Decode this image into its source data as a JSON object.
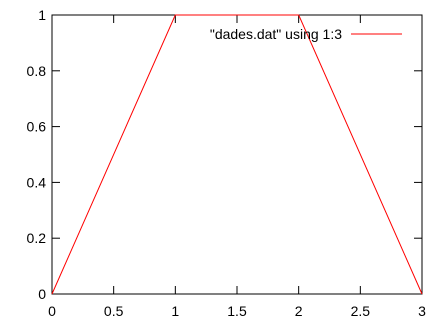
{
  "chart_data": {
    "type": "line",
    "title": "",
    "xlabel": "",
    "ylabel": "",
    "xlim": [
      0,
      3
    ],
    "ylim": [
      0,
      1
    ],
    "xticks": [
      0,
      0.5,
      1,
      1.5,
      2,
      2.5,
      3
    ],
    "yticks": [
      0,
      0.2,
      0.4,
      0.6,
      0.8,
      1
    ],
    "xtick_labels": [
      "0",
      "0.5",
      "1",
      "1.5",
      "2",
      "2.5",
      "3"
    ],
    "ytick_labels": [
      "0",
      "0.2",
      "0.4",
      "0.6",
      "0.8",
      "1"
    ],
    "grid": false,
    "legend_position": "top-right",
    "series": [
      {
        "name": "\"dades.dat\" using 1:3",
        "color": "#ff0000",
        "x": [
          0,
          1,
          2,
          3
        ],
        "y": [
          0,
          1,
          1,
          0
        ]
      }
    ]
  }
}
